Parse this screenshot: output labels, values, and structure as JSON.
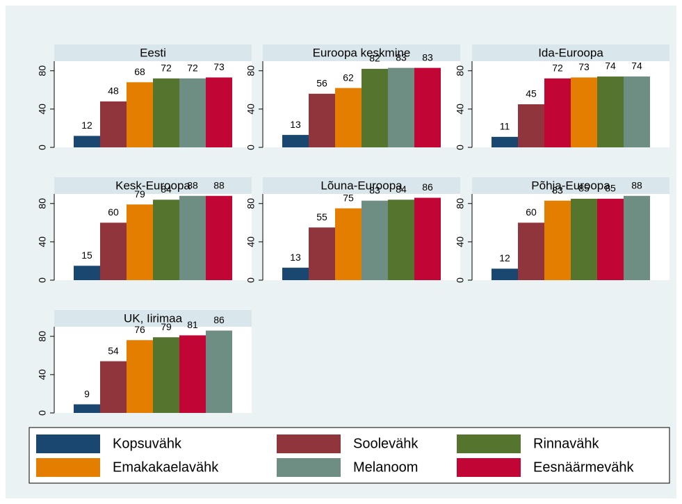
{
  "legend": [
    {
      "name": "Kopsuvähk",
      "color": "#1a476f"
    },
    {
      "name": "Soolevähk",
      "color": "#90353b"
    },
    {
      "name": "Rinnavähk",
      "color": "#55752f"
    },
    {
      "name": "Emakakaelavähk",
      "color": "#e37e00"
    },
    {
      "name": "Melanoom",
      "color": "#6e8e84"
    },
    {
      "name": "Eesnäärmevähk",
      "color": "#c10534"
    }
  ],
  "chart_data": [
    {
      "type": "bar",
      "title": "Eesti",
      "ylim": [
        0,
        90
      ],
      "yticks": [
        0,
        40,
        80
      ],
      "series": [
        {
          "name": "Kopsuvähk",
          "values": [
            12
          ]
        },
        {
          "name": "Soolevähk",
          "values": [
            48
          ]
        },
        {
          "name": "Emakakaelavähk",
          "values": [
            68
          ]
        },
        {
          "name": "Rinnavähk",
          "values": [
            72
          ]
        },
        {
          "name": "Melanoom",
          "values": [
            72
          ]
        },
        {
          "name": "Eesnäärmevähk",
          "values": [
            73
          ]
        }
      ]
    },
    {
      "type": "bar",
      "title": "Euroopa keskmine",
      "ylim": [
        0,
        90
      ],
      "yticks": [
        0,
        40,
        80
      ],
      "series": [
        {
          "name": "Kopsuvähk",
          "values": [
            13
          ]
        },
        {
          "name": "Soolevähk",
          "values": [
            56
          ]
        },
        {
          "name": "Emakakaelavähk",
          "values": [
            62
          ]
        },
        {
          "name": "Rinnavähk",
          "values": [
            82
          ]
        },
        {
          "name": "Melanoom",
          "values": [
            83
          ]
        },
        {
          "name": "Eesnäärmevähk",
          "values": [
            83
          ]
        }
      ]
    },
    {
      "type": "bar",
      "title": "Ida-Euroopa",
      "ylim": [
        0,
        90
      ],
      "yticks": [
        0,
        40,
        80
      ],
      "series": [
        {
          "name": "Kopsuvähk",
          "values": [
            11
          ]
        },
        {
          "name": "Soolevähk",
          "values": [
            45
          ]
        },
        {
          "name": "Eesnäärmevähk",
          "values": [
            72
          ]
        },
        {
          "name": "Emakakaelavähk",
          "values": [
            73
          ]
        },
        {
          "name": "Rinnavähk",
          "values": [
            74
          ]
        },
        {
          "name": "Melanoom",
          "values": [
            74
          ]
        }
      ]
    },
    {
      "type": "bar",
      "title": "Kesk-Euroopa",
      "ylim": [
        0,
        90
      ],
      "yticks": [
        0,
        40,
        80
      ],
      "series": [
        {
          "name": "Kopsuvähk",
          "values": [
            15
          ]
        },
        {
          "name": "Soolevähk",
          "values": [
            60
          ]
        },
        {
          "name": "Emakakaelavähk",
          "values": [
            79
          ]
        },
        {
          "name": "Rinnavähk",
          "values": [
            84
          ]
        },
        {
          "name": "Melanoom",
          "values": [
            88
          ]
        },
        {
          "name": "Eesnäärmevähk",
          "values": [
            88
          ]
        }
      ]
    },
    {
      "type": "bar",
      "title": "Lõuna-Euroopa",
      "ylim": [
        0,
        90
      ],
      "yticks": [
        0,
        40,
        80
      ],
      "series": [
        {
          "name": "Kopsuvähk",
          "values": [
            13
          ]
        },
        {
          "name": "Soolevähk",
          "values": [
            55
          ]
        },
        {
          "name": "Emakakaelavähk",
          "values": [
            75
          ]
        },
        {
          "name": "Melanoom",
          "values": [
            83
          ]
        },
        {
          "name": "Rinnavähk",
          "values": [
            84
          ]
        },
        {
          "name": "Eesnäärmevähk",
          "values": [
            86
          ]
        }
      ]
    },
    {
      "type": "bar",
      "title": "Põhja-Euroopa",
      "ylim": [
        0,
        90
      ],
      "yticks": [
        0,
        40,
        80
      ],
      "series": [
        {
          "name": "Kopsuvähk",
          "values": [
            12
          ]
        },
        {
          "name": "Soolevähk",
          "values": [
            60
          ]
        },
        {
          "name": "Emakakaelavähk",
          "values": [
            83
          ]
        },
        {
          "name": "Rinnavähk",
          "values": [
            85
          ]
        },
        {
          "name": "Eesnäärmevähk",
          "values": [
            85
          ]
        },
        {
          "name": "Melanoom",
          "values": [
            88
          ]
        }
      ]
    },
    {
      "type": "bar",
      "title": "UK, Iirimaa",
      "ylim": [
        0,
        90
      ],
      "yticks": [
        0,
        40,
        80
      ],
      "series": [
        {
          "name": "Kopsuvähk",
          "values": [
            9
          ]
        },
        {
          "name": "Soolevähk",
          "values": [
            54
          ]
        },
        {
          "name": "Emakakaelavähk",
          "values": [
            76
          ]
        },
        {
          "name": "Rinnavähk",
          "values": [
            79
          ]
        },
        {
          "name": "Eesnäärmevähk",
          "values": [
            81
          ]
        },
        {
          "name": "Melanoom",
          "values": [
            86
          ]
        }
      ]
    }
  ]
}
